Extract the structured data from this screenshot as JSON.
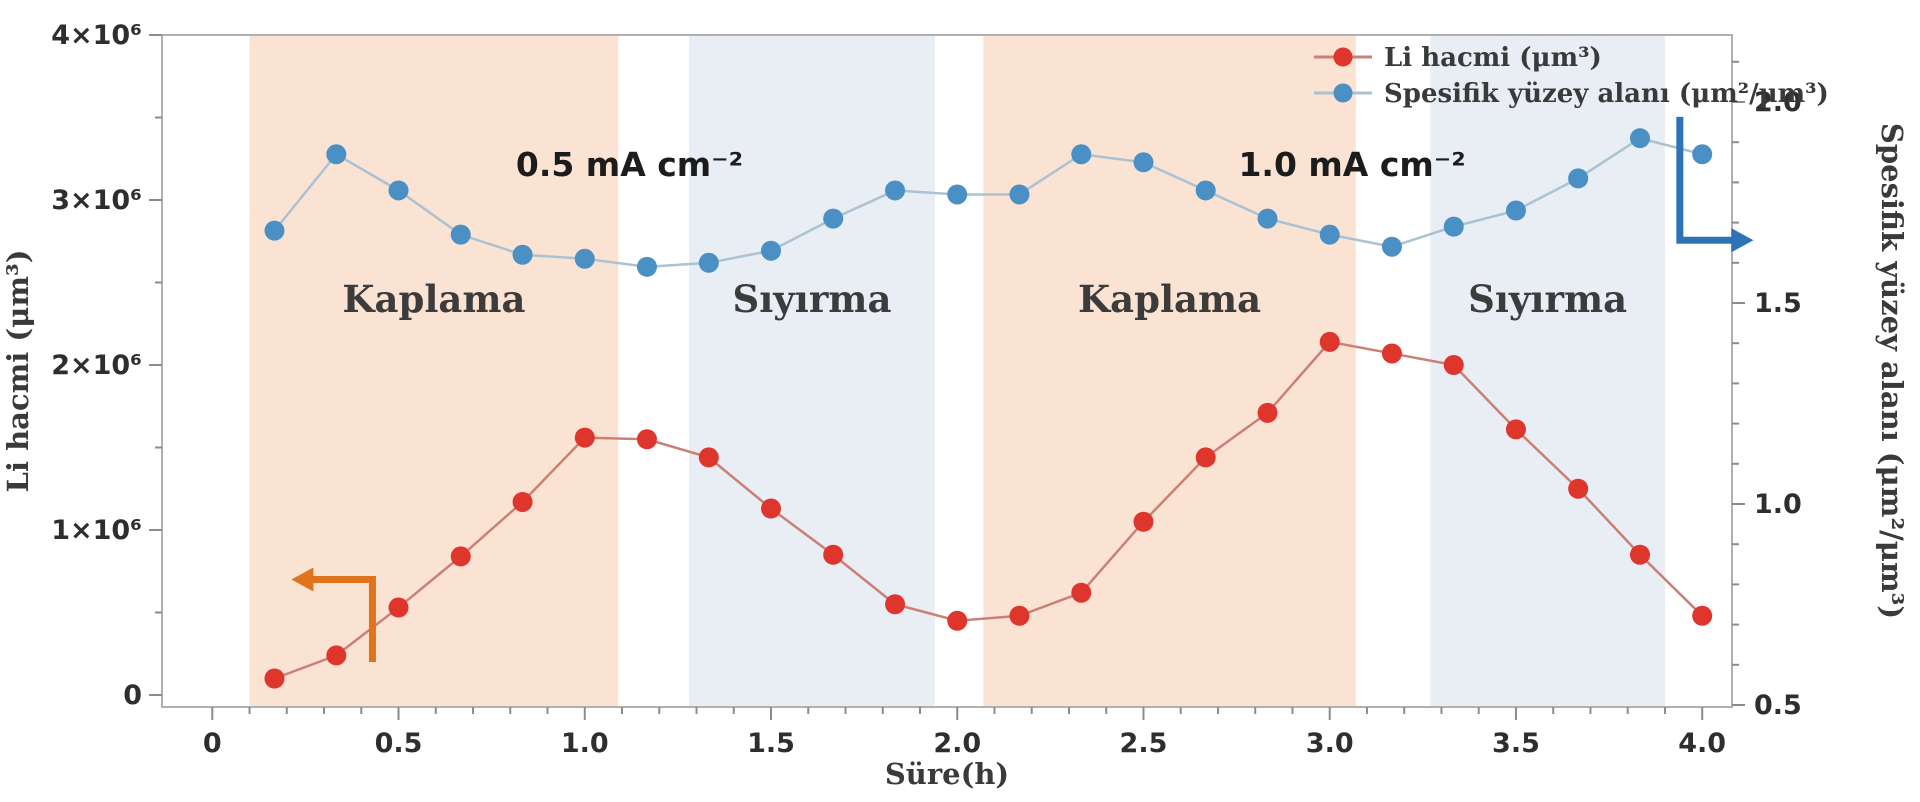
{
  "chart_data": {
    "type": "line",
    "title": "",
    "xlabel": "Süre(h)",
    "ylabel_left": "Li hacmi (μm³)",
    "ylabel_right": "Spesifik yüzey alanı (μm²/μm³)",
    "xlim": [
      -0.135,
      4.08
    ],
    "ylim_left": [
      0,
      4000000
    ],
    "ylim_right": [
      0.5,
      2.0
    ],
    "grid": false,
    "legend_position": "top-right",
    "x": [
      0.167,
      0.333,
      0.5,
      0.667,
      0.833,
      1.0,
      1.167,
      1.333,
      1.5,
      1.667,
      1.833,
      2.0,
      2.167,
      2.333,
      2.5,
      2.667,
      2.833,
      3.0,
      3.167,
      3.333,
      3.5,
      3.667,
      3.833,
      4.0
    ],
    "series": [
      {
        "name": "Li hacmi (μm³)",
        "axis": "left",
        "marker_color": "#de352c",
        "line_color": "#cb8076",
        "values": [
          100000,
          240000,
          530000,
          840000,
          1170000,
          1560000,
          1550000,
          1440000,
          1130000,
          850000,
          550000,
          450000,
          480000,
          620000,
          1050000,
          1440000,
          1710000,
          2140000,
          2070000,
          2000000,
          1610000,
          1250000,
          850000,
          480000
        ]
      },
      {
        "name": "Spesifik yüzey alanı (μm²/μm³)",
        "axis": "right",
        "marker_color": "#4a90c5",
        "line_color": "#abc2d3",
        "values": [
          1.68,
          1.87,
          1.78,
          1.67,
          1.62,
          1.61,
          1.59,
          1.6,
          1.63,
          1.71,
          1.78,
          1.77,
          1.77,
          1.87,
          1.85,
          1.78,
          1.71,
          1.67,
          1.64,
          1.69,
          1.73,
          1.81,
          1.91,
          1.87
        ]
      }
    ],
    "axes": {
      "x_ticks": [
        0,
        0.5,
        1,
        1.5,
        2,
        2.5,
        3,
        3.5,
        4
      ],
      "x_tick_labels": [
        "0",
        "0.5",
        "1.0",
        "1.5",
        "2.0",
        "2.5",
        "3.0",
        "3.5",
        "4.0"
      ],
      "x_minor_step": 0.1,
      "left_ticks": [
        0,
        1000000,
        2000000,
        3000000,
        4000000
      ],
      "left_tick_labels": [
        "0",
        "1×10⁶",
        "2×10⁶",
        "3×10⁶",
        "4×10⁶"
      ],
      "left_minor_ticks": [
        500000,
        1500000,
        2500000,
        3500000
      ],
      "right_ticks": [
        0.5,
        1.0,
        1.5,
        2.0
      ],
      "right_tick_labels": [
        "0.5",
        "1.0",
        "1.5",
        "2.0"
      ],
      "right_minor_step": 0.1
    },
    "bands": [
      {
        "label": "Kaplama",
        "from": 0.1,
        "to": 1.09,
        "color": "#fbe3d3"
      },
      {
        "label": "Sıyırma",
        "from": 1.28,
        "to": 1.94,
        "color": "#e9edf4"
      },
      {
        "label": "Kaplama",
        "from": 2.07,
        "to": 3.07,
        "color": "#fbe3d3"
      },
      {
        "label": "Sıyırma",
        "from": 3.27,
        "to": 3.9,
        "color": "#e9edf4"
      }
    ],
    "annotations": [
      {
        "text": "0.5 mA cm⁻²",
        "t": 1.12
      },
      {
        "text": "1.0 mA cm⁻²",
        "t": 3.06
      }
    ],
    "arrows": [
      {
        "name": "left-axis-indicator-arrow",
        "color": "#e0731d",
        "value_axis": "left",
        "points": [
          [
            0.43,
            200000
          ],
          [
            0.43,
            700000
          ],
          [
            0.25,
            700000
          ]
        ],
        "head": "left"
      },
      {
        "name": "right-axis-indicator-arrow",
        "color": "#2d73b5",
        "value_axis": "right",
        "points": [
          [
            3.94,
            1.963
          ],
          [
            3.94,
            1.656
          ],
          [
            4.1,
            1.656
          ]
        ],
        "head": "right"
      }
    ],
    "legend": [
      {
        "label": "Li hacmi (μm³)",
        "marker_color": "#de352c",
        "line_color": "#cb8076"
      },
      {
        "label": "Spesifik yüzey alanı (μm²/μm³)",
        "marker_color": "#4a90c5",
        "line_color": "#abc2d3"
      }
    ],
    "colors": {
      "frame": "#b0b0b0",
      "tick": "#8c8c8c",
      "tick_label": "#2e2e2e",
      "band_label": "#3c3c3c",
      "annotation_text": "#1c1c1c",
      "axis_title": "#3a3a3a",
      "background": "#ffffff"
    }
  }
}
